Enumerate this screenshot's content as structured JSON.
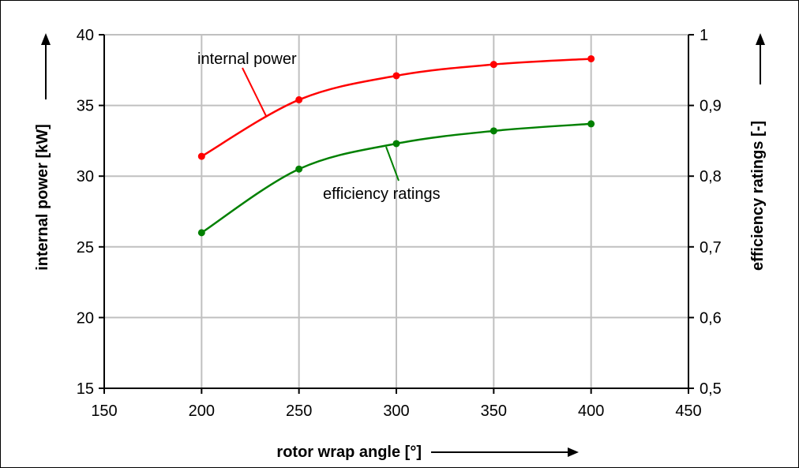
{
  "chart_data": {
    "type": "line",
    "x": [
      200,
      250,
      300,
      350,
      400
    ],
    "xlim": [
      150,
      450
    ],
    "xticks": [
      "150",
      "200",
      "250",
      "300",
      "350",
      "400",
      "450"
    ],
    "xlabel": "rotor wrap angle [°]",
    "ylabel_left": "internal power [kW]",
    "ylim_left": [
      15,
      40
    ],
    "yticks_left": [
      "15",
      "20",
      "25",
      "30",
      "35",
      "40"
    ],
    "ylabel_right": "efficiency ratings [-]",
    "ylim_right": [
      0.5,
      1.0
    ],
    "yticks_right": [
      "0,5",
      "0,6",
      "0,7",
      "0,8",
      "0,9",
      "1"
    ],
    "grid": true,
    "series": [
      {
        "name": "internal power",
        "axis": "left",
        "color": "#ff0000",
        "values": [
          31.4,
          35.4,
          37.1,
          37.9,
          38.3
        ]
      },
      {
        "name": "efficiency ratings",
        "axis": "right",
        "color": "#008000",
        "values": [
          0.72,
          0.81,
          0.846,
          0.864,
          0.874
        ]
      }
    ]
  }
}
